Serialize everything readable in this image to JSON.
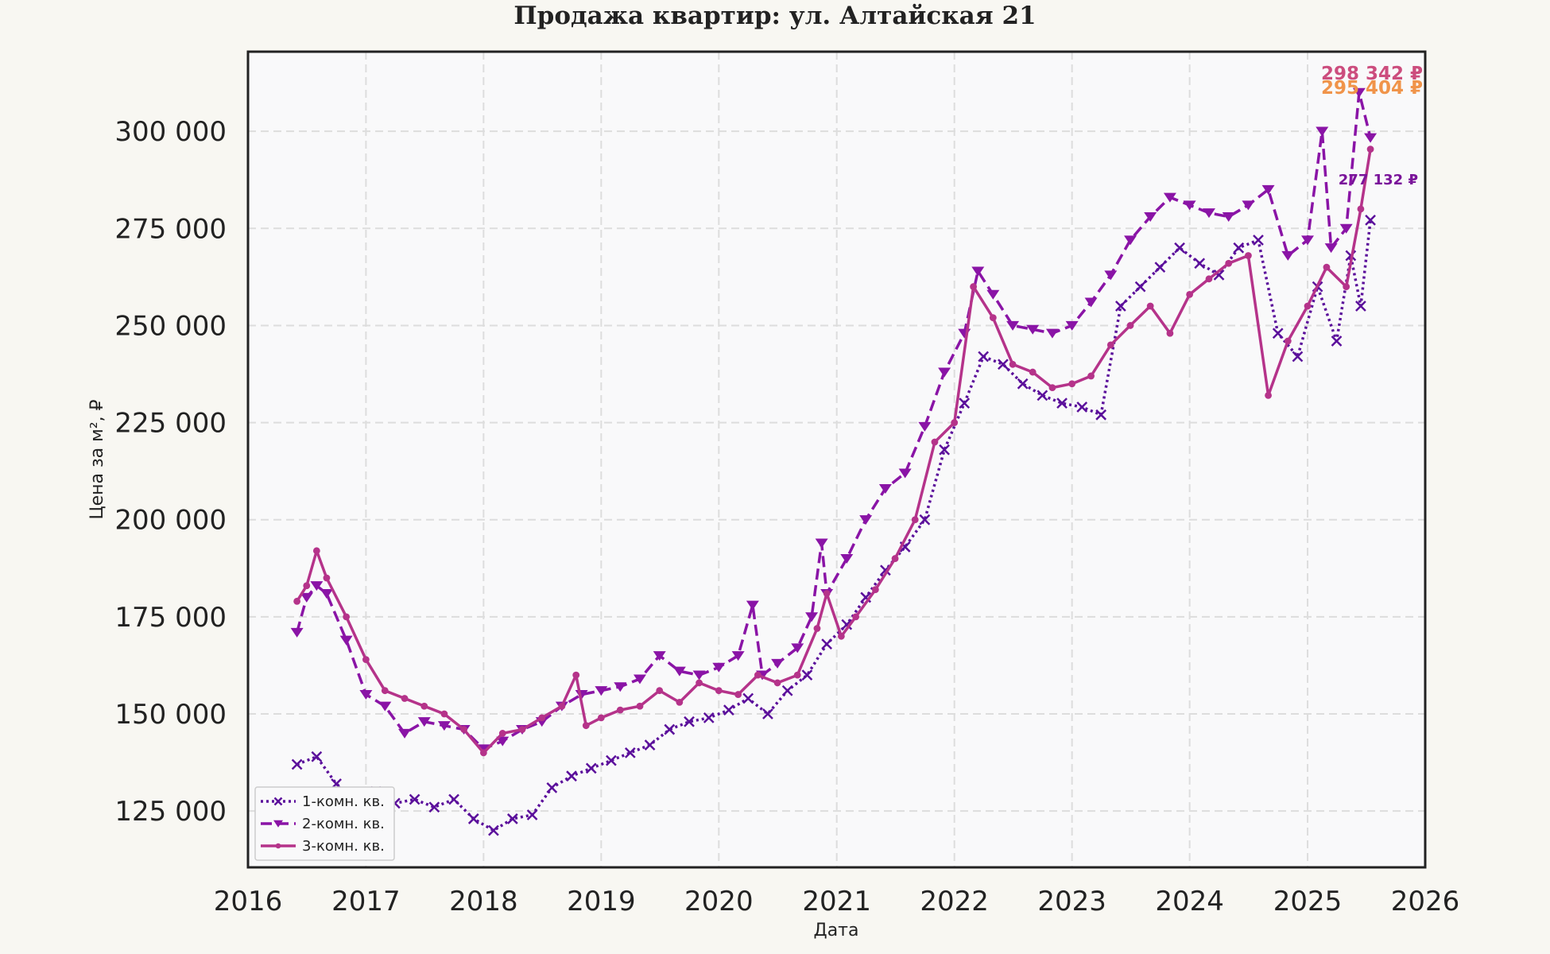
{
  "chart_data": {
    "type": "line",
    "title": "Продажа квартир: ул. Алтайская 21",
    "xlabel": "Дата",
    "ylabel": "Цена за м², ₽",
    "xlim": [
      "2016-01-01",
      "2026-01-01"
    ],
    "ylim": [
      110500,
      320500
    ],
    "x_ticks": [
      "2016",
      "2017",
      "2018",
      "2019",
      "2020",
      "2021",
      "2022",
      "2023",
      "2024",
      "2025",
      "2026"
    ],
    "y_ticks": [
      125000,
      150000,
      175000,
      200000,
      225000,
      250000,
      275000,
      300000
    ],
    "y_tick_labels": [
      "125 000",
      "150 000",
      "175 000",
      "200 000",
      "225 000",
      "250 000",
      "275 000",
      "300 000"
    ],
    "grid": true,
    "legend_position": "bottom-left",
    "series": [
      {
        "name": "1-комн. кв.",
        "color": "#5b0f9b",
        "line_style": "dotted",
        "marker": "x",
        "end_label": "277 132 ₽",
        "points": [
          [
            "2016-06-01",
            137000
          ],
          [
            "2016-08-01",
            139000
          ],
          [
            "2016-10-01",
            132000
          ],
          [
            "2016-12-01",
            128000
          ],
          [
            "2017-02-01",
            130000
          ],
          [
            "2017-04-01",
            127000
          ],
          [
            "2017-06-01",
            128000
          ],
          [
            "2017-08-01",
            126000
          ],
          [
            "2017-10-01",
            128000
          ],
          [
            "2017-12-01",
            123000
          ],
          [
            "2018-02-01",
            120000
          ],
          [
            "2018-04-01",
            123000
          ],
          [
            "2018-06-01",
            124000
          ],
          [
            "2018-08-01",
            131000
          ],
          [
            "2018-10-01",
            134000
          ],
          [
            "2018-12-01",
            136000
          ],
          [
            "2019-02-01",
            138000
          ],
          [
            "2019-04-01",
            140000
          ],
          [
            "2019-06-01",
            142000
          ],
          [
            "2019-08-01",
            146000
          ],
          [
            "2019-10-01",
            148000
          ],
          [
            "2019-12-01",
            149000
          ],
          [
            "2020-02-01",
            151000
          ],
          [
            "2020-04-01",
            154000
          ],
          [
            "2020-06-01",
            150000
          ],
          [
            "2020-08-01",
            156000
          ],
          [
            "2020-10-01",
            160000
          ],
          [
            "2020-12-01",
            168000
          ],
          [
            "2021-02-01",
            173000
          ],
          [
            "2021-04-01",
            180000
          ],
          [
            "2021-06-01",
            187000
          ],
          [
            "2021-08-01",
            193000
          ],
          [
            "2021-10-01",
            200000
          ],
          [
            "2021-12-01",
            218000
          ],
          [
            "2022-02-01",
            230000
          ],
          [
            "2022-04-01",
            242000
          ],
          [
            "2022-06-01",
            240000
          ],
          [
            "2022-08-01",
            235000
          ],
          [
            "2022-10-01",
            232000
          ],
          [
            "2022-12-01",
            230000
          ],
          [
            "2023-02-01",
            229000
          ],
          [
            "2023-04-01",
            227000
          ],
          [
            "2023-06-01",
            255000
          ],
          [
            "2023-08-01",
            260000
          ],
          [
            "2023-10-01",
            265000
          ],
          [
            "2023-12-01",
            270000
          ],
          [
            "2024-02-01",
            266000
          ],
          [
            "2024-04-01",
            263000
          ],
          [
            "2024-06-01",
            270000
          ],
          [
            "2024-08-01",
            272000
          ],
          [
            "2024-10-01",
            248000
          ],
          [
            "2024-12-01",
            242000
          ],
          [
            "2025-02-01",
            260000
          ],
          [
            "2025-04-01",
            246000
          ],
          [
            "2025-05-15",
            268000
          ],
          [
            "2025-06-15",
            255000
          ],
          [
            "2025-07-15",
            277132
          ]
        ]
      },
      {
        "name": "2-комн. кв.",
        "color": "#8a14a6",
        "line_style": "dashed",
        "marker": "triangle-down",
        "end_label": "298 342 ₽",
        "points": [
          [
            "2016-06-01",
            171000
          ],
          [
            "2016-07-01",
            180000
          ],
          [
            "2016-08-01",
            183000
          ],
          [
            "2016-09-01",
            181000
          ],
          [
            "2016-11-01",
            169000
          ],
          [
            "2017-01-01",
            155000
          ],
          [
            "2017-03-01",
            152000
          ],
          [
            "2017-05-01",
            145000
          ],
          [
            "2017-07-01",
            148000
          ],
          [
            "2017-09-01",
            147000
          ],
          [
            "2017-11-01",
            146000
          ],
          [
            "2018-01-01",
            141000
          ],
          [
            "2018-03-01",
            143000
          ],
          [
            "2018-05-01",
            146000
          ],
          [
            "2018-07-01",
            148000
          ],
          [
            "2018-09-01",
            152000
          ],
          [
            "2018-11-01",
            155000
          ],
          [
            "2019-01-01",
            156000
          ],
          [
            "2019-03-01",
            157000
          ],
          [
            "2019-05-01",
            159000
          ],
          [
            "2019-07-01",
            165000
          ],
          [
            "2019-09-01",
            161000
          ],
          [
            "2019-11-01",
            160000
          ],
          [
            "2020-01-01",
            162000
          ],
          [
            "2020-03-01",
            165000
          ],
          [
            "2020-04-15",
            178000
          ],
          [
            "2020-05-15",
            160000
          ],
          [
            "2020-07-01",
            163000
          ],
          [
            "2020-09-01",
            167000
          ],
          [
            "2020-10-15",
            175000
          ],
          [
            "2020-11-15",
            194000
          ],
          [
            "2020-12-01",
            181000
          ],
          [
            "2021-02-01",
            190000
          ],
          [
            "2021-04-01",
            200000
          ],
          [
            "2021-06-01",
            208000
          ],
          [
            "2021-08-01",
            212000
          ],
          [
            "2021-10-01",
            224000
          ],
          [
            "2021-12-01",
            238000
          ],
          [
            "2022-02-01",
            248000
          ],
          [
            "2022-03-15",
            264000
          ],
          [
            "2022-05-01",
            258000
          ],
          [
            "2022-07-01",
            250000
          ],
          [
            "2022-09-01",
            249000
          ],
          [
            "2022-11-01",
            248000
          ],
          [
            "2023-01-01",
            250000
          ],
          [
            "2023-03-01",
            256000
          ],
          [
            "2023-05-01",
            263000
          ],
          [
            "2023-07-01",
            272000
          ],
          [
            "2023-09-01",
            278000
          ],
          [
            "2023-11-01",
            283000
          ],
          [
            "2024-01-01",
            281000
          ],
          [
            "2024-03-01",
            279000
          ],
          [
            "2024-05-01",
            278000
          ],
          [
            "2024-07-01",
            281000
          ],
          [
            "2024-09-01",
            285000
          ],
          [
            "2024-11-01",
            268000
          ],
          [
            "2025-01-01",
            272000
          ],
          [
            "2025-02-15",
            300000
          ],
          [
            "2025-03-15",
            270000
          ],
          [
            "2025-05-01",
            275000
          ],
          [
            "2025-06-10",
            310000
          ],
          [
            "2025-07-15",
            298342
          ]
        ]
      },
      {
        "name": "3-комн. кв.",
        "color": "#b5338a",
        "line_style": "solid",
        "marker": "circle",
        "end_label": "295 404 ₽",
        "points": [
          [
            "2016-06-01",
            179000
          ],
          [
            "2016-07-01",
            183000
          ],
          [
            "2016-08-01",
            192000
          ],
          [
            "2016-09-01",
            185000
          ],
          [
            "2016-11-01",
            175000
          ],
          [
            "2017-01-01",
            164000
          ],
          [
            "2017-03-01",
            156000
          ],
          [
            "2017-05-01",
            154000
          ],
          [
            "2017-07-01",
            152000
          ],
          [
            "2017-09-01",
            150000
          ],
          [
            "2017-11-01",
            146000
          ],
          [
            "2018-01-01",
            140000
          ],
          [
            "2018-03-01",
            145000
          ],
          [
            "2018-05-01",
            146000
          ],
          [
            "2018-07-01",
            149000
          ],
          [
            "2018-09-01",
            152000
          ],
          [
            "2018-10-15",
            160000
          ],
          [
            "2018-11-15",
            147000
          ],
          [
            "2019-01-01",
            149000
          ],
          [
            "2019-03-01",
            151000
          ],
          [
            "2019-05-01",
            152000
          ],
          [
            "2019-07-01",
            156000
          ],
          [
            "2019-09-01",
            153000
          ],
          [
            "2019-11-01",
            158000
          ],
          [
            "2020-01-01",
            156000
          ],
          [
            "2020-03-01",
            155000
          ],
          [
            "2020-05-01",
            160000
          ],
          [
            "2020-07-01",
            158000
          ],
          [
            "2020-09-01",
            160000
          ],
          [
            "2020-11-01",
            172000
          ],
          [
            "2020-12-01",
            181000
          ],
          [
            "2021-01-15",
            170000
          ],
          [
            "2021-03-01",
            175000
          ],
          [
            "2021-05-01",
            182000
          ],
          [
            "2021-07-01",
            190000
          ],
          [
            "2021-09-01",
            200000
          ],
          [
            "2021-11-01",
            220000
          ],
          [
            "2022-01-01",
            225000
          ],
          [
            "2022-03-01",
            260000
          ],
          [
            "2022-05-01",
            252000
          ],
          [
            "2022-07-01",
            240000
          ],
          [
            "2022-09-01",
            238000
          ],
          [
            "2022-11-01",
            234000
          ],
          [
            "2023-01-01",
            235000
          ],
          [
            "2023-03-01",
            237000
          ],
          [
            "2023-05-01",
            245000
          ],
          [
            "2023-07-01",
            250000
          ],
          [
            "2023-09-01",
            255000
          ],
          [
            "2023-11-01",
            248000
          ],
          [
            "2024-01-01",
            258000
          ],
          [
            "2024-03-01",
            262000
          ],
          [
            "2024-05-01",
            266000
          ],
          [
            "2024-07-01",
            268000
          ],
          [
            "2024-09-01",
            232000
          ],
          [
            "2024-11-01",
            246000
          ],
          [
            "2025-01-01",
            255000
          ],
          [
            "2025-03-01",
            265000
          ],
          [
            "2025-05-01",
            260000
          ],
          [
            "2025-06-15",
            280000
          ],
          [
            "2025-07-15",
            295404
          ]
        ]
      }
    ]
  }
}
